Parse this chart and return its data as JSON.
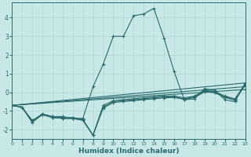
{
  "xlabel": "Humidex (Indice chaleur)",
  "bg_color": "#c8e8e8",
  "grid_color": "#b0d4d4",
  "line_color": "#2a6b6b",
  "xlim": [
    0,
    23
  ],
  "ylim": [
    -2.5,
    4.8
  ],
  "xticks": [
    0,
    1,
    2,
    3,
    4,
    5,
    6,
    7,
    8,
    9,
    10,
    11,
    12,
    13,
    14,
    15,
    16,
    17,
    18,
    19,
    20,
    21,
    22,
    23
  ],
  "yticks": [
    -2,
    -1,
    0,
    1,
    2,
    3,
    4
  ],
  "lines": [
    {
      "x": [
        0,
        1,
        2,
        3,
        4,
        5,
        6,
        7,
        8,
        9,
        10,
        11,
        12,
        13,
        14,
        15,
        16,
        17,
        18,
        19,
        20,
        21,
        22,
        23
      ],
      "y": [
        -0.7,
        -0.8,
        -1.5,
        -1.2,
        -1.3,
        -1.3,
        -1.4,
        -1.4,
        0.3,
        1.5,
        3.0,
        3.0,
        4.1,
        4.2,
        4.5,
        2.9,
        1.1,
        -0.4,
        -0.35,
        0.2,
        0.1,
        -0.4,
        -0.5,
        0.5
      ]
    },
    {
      "x": [
        0,
        1,
        2,
        3,
        4,
        5,
        6,
        7,
        8,
        9,
        10,
        11,
        12,
        13,
        14,
        15,
        16,
        17,
        18,
        19,
        20,
        21,
        22,
        23
      ],
      "y": [
        -0.7,
        -0.8,
        -1.55,
        -1.15,
        -1.3,
        -1.35,
        -1.35,
        -1.45,
        -2.3,
        -0.7,
        -0.45,
        -0.4,
        -0.35,
        -0.3,
        -0.25,
        -0.2,
        -0.2,
        -0.3,
        -0.2,
        0.1,
        0.05,
        -0.2,
        -0.35,
        0.45
      ]
    },
    {
      "x": [
        0,
        1,
        2,
        3,
        4,
        5,
        6,
        7,
        8,
        9,
        10,
        11,
        12,
        13,
        14,
        15,
        16,
        17,
        18,
        19,
        20,
        21,
        22,
        23
      ],
      "y": [
        -0.7,
        -0.8,
        -1.6,
        -1.2,
        -1.35,
        -1.4,
        -1.4,
        -1.5,
        -2.3,
        -0.8,
        -0.5,
        -0.45,
        -0.4,
        -0.35,
        -0.3,
        -0.25,
        -0.25,
        -0.35,
        -0.25,
        0.05,
        0.0,
        -0.25,
        -0.4,
        0.4
      ]
    },
    {
      "x": [
        0,
        1,
        2,
        3,
        4,
        5,
        6,
        7,
        8,
        9,
        10,
        11,
        12,
        13,
        14,
        15,
        16,
        17,
        18,
        19,
        20,
        21,
        22,
        23
      ],
      "y": [
        -0.7,
        -0.8,
        -1.6,
        -1.2,
        -1.35,
        -1.4,
        -1.4,
        -1.5,
        -2.3,
        -0.85,
        -0.55,
        -0.5,
        -0.45,
        -0.4,
        -0.35,
        -0.3,
        -0.28,
        -0.38,
        -0.28,
        0.02,
        -0.02,
        -0.28,
        -0.42,
        0.38
      ]
    },
    {
      "x": [
        0,
        23
      ],
      "y": [
        -0.7,
        0.5
      ]
    },
    {
      "x": [
        0,
        23
      ],
      "y": [
        -0.7,
        0.3
      ]
    },
    {
      "x": [
        0,
        23
      ],
      "y": [
        -0.7,
        0.15
      ]
    }
  ]
}
